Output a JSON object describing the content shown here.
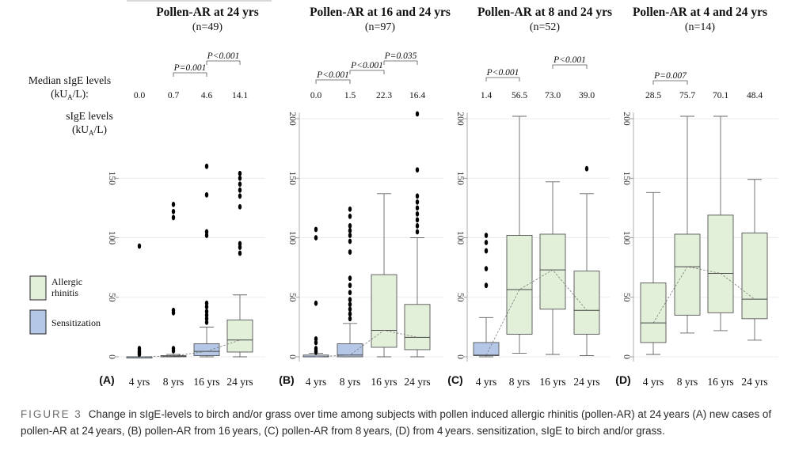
{
  "legend": {
    "items": [
      {
        "label_lines": [
          "Allergic",
          "rhinitis"
        ],
        "color": "#e2f0d9"
      },
      {
        "label_lines": [
          "Sensitization"
        ],
        "color": "#b4c7e7"
      }
    ]
  },
  "median_label_lines": [
    "Median sIgE levels",
    "(kUₐ/L):"
  ],
  "median_label_line1": "Median sIgE levels",
  "median_label_line2_pre": "(kU",
  "median_label_line2_sub": "A",
  "median_label_line2_post": "/L):",
  "ylabel_line1": "sIgE levels",
  "ylabel_line2_pre": "(kU",
  "ylabel_line2_sub": "A",
  "ylabel_line2_post": "/L)",
  "caption": {
    "label": "FIGURE 3",
    "text": "Change in sIgE-levels to birch and/or grass over time among subjects with pollen induced allergic rhinitis (pollen-AR) at 24 years (A) new cases of pollen-AR at 24 years, (B) pollen-AR from 16 years, (C) pollen-AR from 8 years, (D) from 4 years. sensitization, sIgE to birch and/or grass."
  },
  "colors": {
    "allergic": "#e2f0d9",
    "sensitization": "#b4c7e7",
    "box_stroke": "#555555"
  },
  "chart_data": [
    {
      "type": "box",
      "panel": "(A)",
      "title": "Pollen-AR at 24 yrs",
      "subtitle": "(n=49)",
      "categories": [
        "4 yrs",
        "8 yrs",
        "16 yrs",
        "24 yrs"
      ],
      "medians_label": [
        "0.0",
        "0.7",
        "4.6",
        "14.1"
      ],
      "ylim": [
        0,
        205
      ],
      "yticks": [
        0,
        50,
        100,
        150
      ],
      "grid": true,
      "boxes": [
        {
          "category": "4 yrs",
          "group": "sensitization",
          "whisker_low": 0,
          "q1": 0,
          "median": 0,
          "q3": 0,
          "whisker_high": 0,
          "outliers": [
            2,
            3,
            4,
            5,
            7,
            93
          ]
        },
        {
          "category": "8 yrs",
          "group": "sensitization",
          "whisker_low": 0,
          "q1": 0,
          "median": 0.7,
          "q3": 1,
          "whisker_high": 2,
          "outliers": [
            5,
            7,
            37,
            39,
            117,
            122,
            128
          ]
        },
        {
          "category": "16 yrs",
          "group": "sensitization",
          "whisker_low": 0,
          "q1": 1,
          "median": 4.6,
          "q3": 11,
          "whisker_high": 25,
          "outliers": [
            29,
            32,
            35,
            38,
            42,
            45,
            102,
            105,
            136,
            160
          ]
        },
        {
          "category": "24 yrs",
          "group": "allergic",
          "whisker_low": 0,
          "q1": 4,
          "median": 14.1,
          "q3": 31,
          "whisker_high": 52,
          "outliers": [
            87,
            92,
            95,
            126,
            135,
            140,
            145,
            150,
            154
          ]
        }
      ],
      "significance": [
        {
          "from": "8 yrs",
          "to": "16 yrs",
          "label": "P=0.001"
        },
        {
          "from": "16 yrs",
          "to": "24 yrs",
          "label": "P<0.001"
        }
      ]
    },
    {
      "type": "box",
      "panel": "(B)",
      "title": "Pollen-AR at 16 and 24 yrs",
      "subtitle": "(n=97)",
      "categories": [
        "4 yrs",
        "8 yrs",
        "16 yrs",
        "24 yrs"
      ],
      "medians_label": [
        "0.0",
        "1.5",
        "22.3",
        "16.4"
      ],
      "ylim": [
        0,
        205
      ],
      "yticks": [
        0,
        50,
        100,
        150,
        200
      ],
      "grid": true,
      "boxes": [
        {
          "category": "4 yrs",
          "group": "sensitization",
          "whisker_low": 0,
          "q1": 0,
          "median": 0,
          "q3": 1.5,
          "whisker_high": 3,
          "outliers": [
            4,
            5,
            7,
            12,
            15,
            45,
            100,
            107
          ]
        },
        {
          "category": "8 yrs",
          "group": "sensitization",
          "whisker_low": 0,
          "q1": 0,
          "median": 1.5,
          "q3": 11,
          "whisker_high": 28,
          "outliers": [
            32,
            36,
            40,
            44,
            48,
            54,
            60,
            66,
            88,
            97,
            102,
            106,
            110,
            118,
            124
          ]
        },
        {
          "category": "16 yrs",
          "group": "allergic",
          "whisker_low": 0,
          "q1": 8,
          "median": 22.3,
          "q3": 69,
          "whisker_high": 137,
          "outliers": []
        },
        {
          "category": "24 yrs",
          "group": "allergic",
          "whisker_low": 0,
          "q1": 6,
          "median": 16.4,
          "q3": 44,
          "whisker_high": 100,
          "outliers": [
            105,
            110,
            115,
            120,
            125,
            130,
            135,
            157,
            204
          ]
        }
      ],
      "significance": [
        {
          "from": "4 yrs",
          "to": "8 yrs",
          "label": "P<0.001"
        },
        {
          "from": "8 yrs",
          "to": "16 yrs",
          "label": "P<0.001"
        },
        {
          "from": "16 yrs",
          "to": "24 yrs",
          "label": "P=0.035"
        }
      ]
    },
    {
      "type": "box",
      "panel": "(C)",
      "title": "Pollen-AR at 8 and 24 yrs",
      "subtitle": "(n=52)",
      "categories": [
        "4 yrs",
        "8 yrs",
        "16 yrs",
        "24 yrs"
      ],
      "medians_label": [
        "1.4",
        "56.5",
        "73.0",
        "39.0"
      ],
      "ylim": [
        0,
        205
      ],
      "yticks": [
        0,
        50,
        100,
        150,
        200
      ],
      "grid": true,
      "boxes": [
        {
          "category": "4 yrs",
          "group": "sensitization",
          "whisker_low": 0,
          "q1": 1,
          "median": 1.4,
          "q3": 12,
          "whisker_high": 33,
          "outliers": [
            60,
            74,
            89,
            96,
            102
          ]
        },
        {
          "category": "8 yrs",
          "group": "allergic",
          "whisker_low": 3,
          "q1": 19,
          "median": 56.5,
          "q3": 102,
          "whisker_high": 202,
          "outliers": []
        },
        {
          "category": "16 yrs",
          "group": "allergic",
          "whisker_low": 2,
          "q1": 40,
          "median": 73.0,
          "q3": 103,
          "whisker_high": 147,
          "outliers": []
        },
        {
          "category": "24 yrs",
          "group": "allergic",
          "whisker_low": 1,
          "q1": 19,
          "median": 39.0,
          "q3": 72,
          "whisker_high": 137,
          "outliers": [
            158
          ]
        }
      ],
      "significance": [
        {
          "from": "4 yrs",
          "to": "8 yrs",
          "label": "P<0.001"
        },
        {
          "from": "16 yrs",
          "to": "24 yrs",
          "label": "P<0.001"
        }
      ]
    },
    {
      "type": "box",
      "panel": "(D)",
      "title": "Pollen-AR at 4 and 24 yrs",
      "subtitle": "(n=14)",
      "categories": [
        "4 yrs",
        "8 yrs",
        "16 yrs",
        "24 yrs"
      ],
      "medians_label": [
        "28.5",
        "75.7",
        "70.1",
        "48.4"
      ],
      "ylim": [
        0,
        205
      ],
      "yticks": [
        0,
        50,
        100,
        150,
        200
      ],
      "grid": true,
      "boxes": [
        {
          "category": "4 yrs",
          "group": "allergic",
          "whisker_low": 2,
          "q1": 12,
          "median": 28.5,
          "q3": 62,
          "whisker_high": 138,
          "outliers": []
        },
        {
          "category": "8 yrs",
          "group": "allergic",
          "whisker_low": 20,
          "q1": 35,
          "median": 75.7,
          "q3": 103,
          "whisker_high": 202,
          "outliers": []
        },
        {
          "category": "16 yrs",
          "group": "allergic",
          "whisker_low": 22,
          "q1": 37,
          "median": 70.1,
          "q3": 119,
          "whisker_high": 202,
          "outliers": []
        },
        {
          "category": "24 yrs",
          "group": "allergic",
          "whisker_low": 14,
          "q1": 32,
          "median": 48.4,
          "q3": 104,
          "whisker_high": 149,
          "outliers": []
        }
      ],
      "significance": [
        {
          "from": "4 yrs",
          "to": "8 yrs",
          "label": "P=0.007"
        }
      ]
    }
  ]
}
